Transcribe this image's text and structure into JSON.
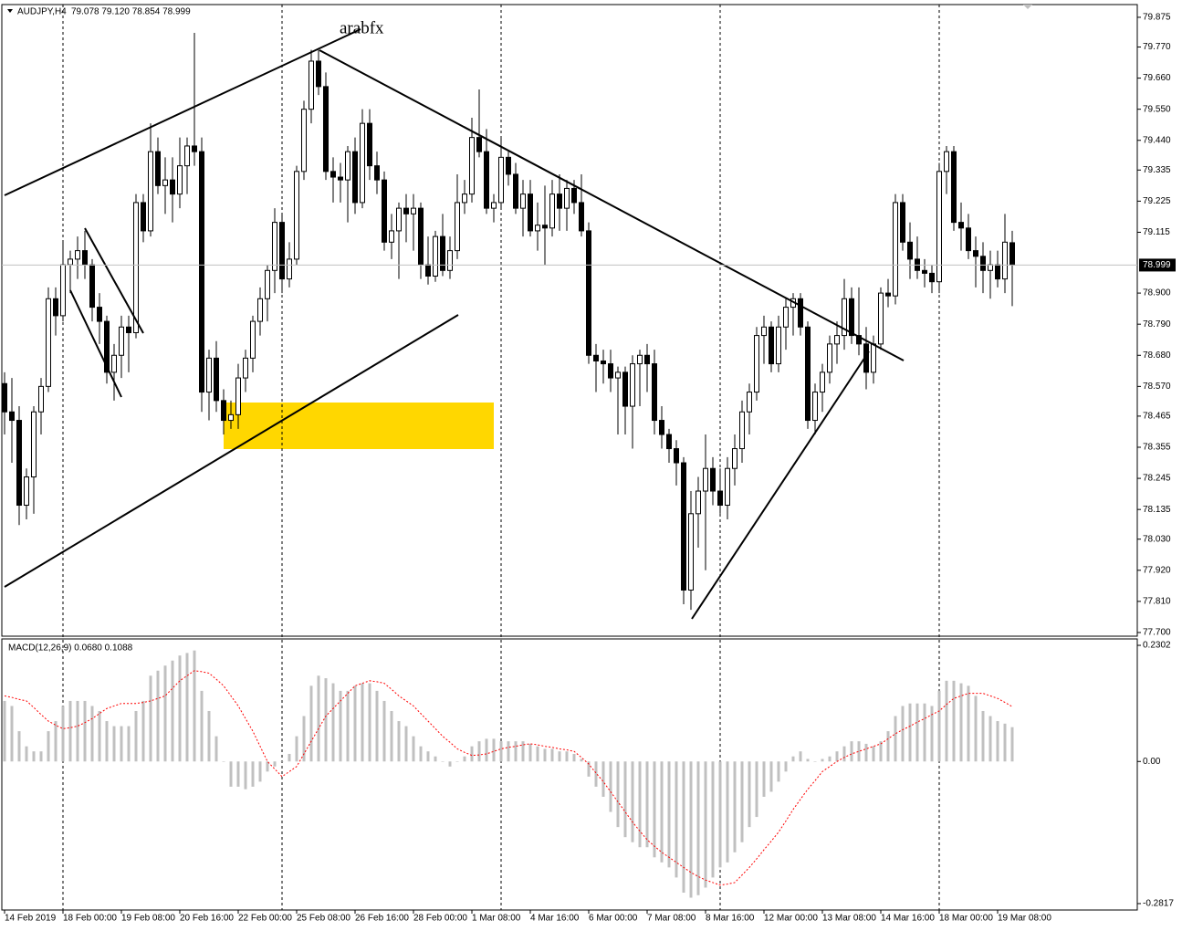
{
  "chart_data": [
    {
      "type": "candlestick",
      "title": "AUDJPY,H4",
      "ohlc_label": "79.078 79.120 78.854 78.999",
      "annotation": "arabfx",
      "categories": [
        "14 Feb 2019",
        null,
        null,
        null,
        null,
        null,
        null,
        null,
        "18 Feb 00:00",
        null,
        null,
        null,
        null,
        null,
        null,
        null,
        "19 Feb 08:00",
        null,
        null,
        null,
        null,
        null,
        null,
        null,
        "20 Feb 16:00",
        null,
        null,
        null,
        null,
        null,
        null,
        null,
        "22 Feb 00:00",
        null,
        null,
        null,
        null,
        null,
        null,
        null,
        "25 Feb 08:00",
        null,
        null,
        null,
        null,
        null,
        null,
        null,
        "26 Feb 16:00",
        null,
        null,
        null,
        null,
        null,
        null,
        null,
        "28 Feb 00:00",
        null,
        null,
        null,
        null,
        null,
        null,
        null,
        "1 Mar 08:00",
        null,
        null,
        null,
        null,
        null,
        null,
        null,
        "4 Mar 16:00",
        null,
        null,
        null,
        null,
        null,
        null,
        null,
        "6 Mar 00:00",
        null,
        null,
        null,
        null,
        null,
        null,
        null,
        "7 Mar 08:00",
        null,
        null,
        null,
        null,
        null,
        null,
        null,
        "8 Mar 16:00",
        null,
        null,
        null,
        null,
        null,
        null,
        null,
        "12 Mar 00:00",
        null,
        null,
        null,
        null,
        null,
        null,
        null,
        "13 Mar 08:00",
        null,
        null,
        null,
        null,
        null,
        null,
        null,
        "14 Mar 16:00",
        null,
        null,
        null,
        null,
        null,
        null,
        null,
        "18 Mar 00:00",
        null,
        null,
        null,
        null,
        null,
        null,
        null,
        "19 Mar 08:00",
        null,
        null
      ],
      "open": [
        78.58,
        78.48,
        78.45,
        78.15,
        78.25,
        78.48,
        78.57,
        78.88,
        78.82,
        79.0,
        79.02,
        79.05,
        79.0,
        78.85,
        78.8,
        78.62,
        78.68,
        78.78,
        78.76,
        79.22,
        79.12,
        79.4,
        79.28,
        79.3,
        79.25,
        79.35,
        79.42,
        79.4,
        78.55,
        78.67,
        78.52,
        78.45,
        78.47,
        78.6,
        78.67,
        78.8,
        78.88,
        78.98,
        79.15,
        78.95,
        79.02,
        79.33,
        79.55,
        79.72,
        79.63,
        79.33,
        79.31,
        79.3,
        79.4,
        79.22,
        79.5,
        79.35,
        79.3,
        79.08,
        79.12,
        79.2,
        79.18,
        79.2,
        79.0,
        78.96,
        79.1,
        78.98,
        79.05,
        79.22,
        79.25,
        79.45,
        79.4,
        79.2,
        79.22,
        79.38,
        79.32,
        79.2,
        79.25,
        79.12,
        79.14,
        79.13,
        79.25,
        79.2,
        79.27,
        79.22,
        79.12,
        78.68,
        78.66,
        78.65,
        78.6,
        78.62,
        78.5,
        78.65,
        78.68,
        78.65,
        78.45,
        78.4,
        78.35,
        78.3,
        77.85,
        78.12,
        78.2,
        78.28,
        78.2,
        78.15,
        78.28,
        78.35,
        78.48,
        78.55,
        78.75,
        78.78,
        78.65,
        78.78,
        78.85,
        78.88,
        78.78,
        78.45,
        78.55,
        78.62,
        78.72,
        78.75,
        78.88,
        78.75,
        78.72,
        78.62,
        78.72,
        78.9,
        78.89,
        79.22,
        79.08,
        79.02,
        78.98,
        78.97,
        78.94,
        79.33,
        79.4,
        79.15,
        79.13,
        79.05,
        79.03,
        78.98,
        79.0,
        78.95,
        79.078
      ],
      "high": [
        78.62,
        78.6,
        78.5,
        78.28,
        78.5,
        78.6,
        78.92,
        78.92,
        79.08,
        79.05,
        79.1,
        79.12,
        79.02,
        78.9,
        78.82,
        78.72,
        78.82,
        78.82,
        79.25,
        79.25,
        79.5,
        79.45,
        79.38,
        79.38,
        79.45,
        79.45,
        79.82,
        79.45,
        78.7,
        78.73,
        78.56,
        78.52,
        78.65,
        78.7,
        78.82,
        78.92,
        79.0,
        79.2,
        79.18,
        79.08,
        79.35,
        79.58,
        79.76,
        79.76,
        79.68,
        79.38,
        79.36,
        79.42,
        79.45,
        79.55,
        79.55,
        79.4,
        79.33,
        79.18,
        79.22,
        79.25,
        79.25,
        79.22,
        79.1,
        79.12,
        79.18,
        79.1,
        79.32,
        79.3,
        79.52,
        79.62,
        79.48,
        79.25,
        79.45,
        79.4,
        79.36,
        79.3,
        79.3,
        79.22,
        79.28,
        79.3,
        79.32,
        79.3,
        79.3,
        79.32,
        79.15,
        78.72,
        78.7,
        78.7,
        78.64,
        78.64,
        78.68,
        78.7,
        78.72,
        78.7,
        78.5,
        78.42,
        78.38,
        78.32,
        78.2,
        78.25,
        78.4,
        78.32,
        78.28,
        78.32,
        78.4,
        78.52,
        78.58,
        78.78,
        78.82,
        78.8,
        78.82,
        78.88,
        78.9,
        78.9,
        78.8,
        78.58,
        78.65,
        78.75,
        78.8,
        78.95,
        78.92,
        78.92,
        78.78,
        78.75,
        78.92,
        78.95,
        79.25,
        79.25,
        79.15,
        79.1,
        79.02,
        79.0,
        79.36,
        79.42,
        79.42,
        79.22,
        79.18,
        79.1,
        79.08,
        79.05,
        79.05,
        79.18,
        79.12
      ],
      "low": [
        78.4,
        78.3,
        78.08,
        78.1,
        78.12,
        78.4,
        78.55,
        78.75,
        78.8,
        78.9,
        78.95,
        78.95,
        78.8,
        78.72,
        78.58,
        78.52,
        78.6,
        78.62,
        78.74,
        79.08,
        79.1,
        79.25,
        79.18,
        79.15,
        79.2,
        79.25,
        79.35,
        78.48,
        78.45,
        78.48,
        78.4,
        78.42,
        78.42,
        78.55,
        78.62,
        78.75,
        78.8,
        78.9,
        78.9,
        78.92,
        79.0,
        79.3,
        79.5,
        79.6,
        79.3,
        79.22,
        79.22,
        79.15,
        79.18,
        79.2,
        79.3,
        79.25,
        79.05,
        79.02,
        78.95,
        79.08,
        79.05,
        78.95,
        78.93,
        78.94,
        78.96,
        78.95,
        79.02,
        79.18,
        79.22,
        79.38,
        79.18,
        79.15,
        79.2,
        79.28,
        79.18,
        79.1,
        79.1,
        79.05,
        79.0,
        79.1,
        79.12,
        79.12,
        79.18,
        79.1,
        78.65,
        78.55,
        78.58,
        78.55,
        78.4,
        78.4,
        78.35,
        78.5,
        78.55,
        78.4,
        78.35,
        78.3,
        78.22,
        77.8,
        77.78,
        78.0,
        77.92,
        78.15,
        78.12,
        78.1,
        78.22,
        78.3,
        78.4,
        78.52,
        78.65,
        78.62,
        78.62,
        78.7,
        78.75,
        78.75,
        78.42,
        78.4,
        78.48,
        78.58,
        78.65,
        78.7,
        78.72,
        78.68,
        78.56,
        78.58,
        78.7,
        78.85,
        78.86,
        79.05,
        78.95,
        78.95,
        78.92,
        78.9,
        78.9,
        79.25,
        79.12,
        79.05,
        79.02,
        78.92,
        78.9,
        78.88,
        78.92,
        78.9,
        78.854
      ],
      "close": [
        78.48,
        78.45,
        78.15,
        78.25,
        78.48,
        78.57,
        78.88,
        78.82,
        79.0,
        79.02,
        79.05,
        79.0,
        78.85,
        78.8,
        78.62,
        78.68,
        78.78,
        78.76,
        79.22,
        79.12,
        79.4,
        79.28,
        79.3,
        79.25,
        79.35,
        79.42,
        79.4,
        78.55,
        78.67,
        78.52,
        78.45,
        78.47,
        78.6,
        78.67,
        78.8,
        78.88,
        78.98,
        79.15,
        78.95,
        79.02,
        79.33,
        79.55,
        79.72,
        79.63,
        79.33,
        79.31,
        79.3,
        79.4,
        79.22,
        79.5,
        79.35,
        79.3,
        79.08,
        79.12,
        79.2,
        79.18,
        79.2,
        79.0,
        78.96,
        79.1,
        78.98,
        79.05,
        79.22,
        79.25,
        79.45,
        79.4,
        79.2,
        79.22,
        79.38,
        79.32,
        79.2,
        79.25,
        79.12,
        79.14,
        79.13,
        79.25,
        79.2,
        79.27,
        79.22,
        79.12,
        78.68,
        78.66,
        78.65,
        78.6,
        78.62,
        78.5,
        78.65,
        78.68,
        78.65,
        78.45,
        78.4,
        78.35,
        78.3,
        77.85,
        78.12,
        78.2,
        78.28,
        78.2,
        78.15,
        78.28,
        78.35,
        78.48,
        78.55,
        78.75,
        78.78,
        78.65,
        78.78,
        78.85,
        78.88,
        78.78,
        78.45,
        78.55,
        78.62,
        78.72,
        78.75,
        78.88,
        78.75,
        78.72,
        78.62,
        78.72,
        78.9,
        78.89,
        79.22,
        79.08,
        79.02,
        78.98,
        78.97,
        78.94,
        79.33,
        79.4,
        79.15,
        79.13,
        79.05,
        79.03,
        78.98,
        79.0,
        78.95,
        79.08,
        78.999
      ],
      "up_color": "#ffffff",
      "down_color": "#000000",
      "outline_color": "#000000",
      "ylim": [
        77.687,
        79.92
      ],
      "yticks": [
        79.875,
        {
          "value": 79.77,
          "label": "79.770"
        },
        {
          "value": 79.66,
          "label": "79.660"
        },
        {
          "value": 79.55,
          "label": "79.550"
        },
        {
          "value": 79.44,
          "label": "79.440"
        },
        79.335,
        79.225,
        79.115,
        {
          "value": 78.9,
          "label": "78.900"
        },
        {
          "value": 78.79,
          "label": "78.790"
        },
        {
          "value": 78.68,
          "label": "78.680"
        },
        {
          "value": 78.57,
          "label": "78.570"
        },
        78.465,
        78.355,
        78.245,
        78.135,
        {
          "value": 78.03,
          "label": "78.030"
        },
        {
          "value": 77.92,
          "label": "77.920"
        },
        {
          "value": 77.81,
          "label": "77.810"
        },
        {
          "value": 77.7,
          "label": "77.700"
        }
      ],
      "grid": false
    },
    {
      "type": "macd",
      "title": "MACD(12,26,9) 0.0680 0.1088",
      "series": [
        {
          "color": "#c0c0c0",
          "values": [
            0.12,
            0.11,
            0.06,
            0.03,
            0.02,
            0.02,
            0.06,
            0.08,
            0.11,
            0.12,
            0.12,
            0.12,
            0.11,
            0.1,
            0.08,
            0.07,
            0.07,
            0.07,
            0.1,
            0.12,
            0.17,
            0.18,
            0.19,
            0.2,
            0.21,
            0.215,
            0.22,
            0.14,
            0.1,
            0.05,
            0.0,
            -0.05,
            -0.05,
            -0.055,
            -0.05,
            -0.04,
            -0.02,
            -0.01,
            0.0,
            0.015,
            0.05,
            0.09,
            0.15,
            0.17,
            0.165,
            0.155,
            0.14,
            0.14,
            0.15,
            0.155,
            0.155,
            0.14,
            0.12,
            0.1,
            0.08,
            0.07,
            0.05,
            0.03,
            0.02,
            0.01,
            0.0,
            -0.01,
            0.0,
            0.01,
            0.03,
            0.04,
            0.045,
            0.045,
            0.04,
            0.04,
            0.04,
            0.04,
            0.035,
            0.03,
            0.025,
            0.025,
            0.02,
            0.02,
            0.015,
            0.005,
            -0.03,
            -0.05,
            -0.07,
            -0.1,
            -0.13,
            -0.15,
            -0.16,
            -0.17,
            -0.17,
            -0.19,
            -0.2,
            -0.21,
            -0.23,
            -0.26,
            -0.27,
            -0.265,
            -0.25,
            -0.23,
            -0.21,
            -0.2,
            -0.18,
            -0.16,
            -0.13,
            -0.11,
            -0.07,
            -0.06,
            -0.04,
            -0.02,
            0.01,
            0.02,
            0.005,
            0.0,
            0.005,
            0.01,
            0.02,
            0.03,
            0.04,
            0.04,
            0.035,
            0.03,
            0.04,
            0.06,
            0.09,
            0.11,
            0.115,
            0.115,
            0.115,
            0.11,
            0.14,
            0.16,
            0.16,
            0.155,
            0.15,
            0.13,
            0.1,
            0.09,
            0.08,
            0.075,
            0.068
          ]
        },
        {
          "color": "#ff0000",
          "style": "dotted",
          "values": [
            0.13,
            0.127,
            0.123,
            0.12,
            0.107,
            0.093,
            0.08,
            0.072,
            0.065,
            0.067,
            0.07,
            0.077,
            0.085,
            0.095,
            0.105,
            0.11,
            0.115,
            0.115,
            0.115,
            0.117,
            0.12,
            0.125,
            0.13,
            0.145,
            0.16,
            0.17,
            0.18,
            0.178,
            0.175,
            0.163,
            0.15,
            0.13,
            0.11,
            0.085,
            0.06,
            0.03,
            0,
            -0.015,
            -0.03,
            -0.02,
            -0.01,
            0.015,
            0.04,
            0.065,
            0.09,
            0.105,
            0.12,
            0.135,
            0.15,
            0.155,
            0.16,
            0.158,
            0.155,
            0.143,
            0.13,
            0.12,
            0.11,
            0.095,
            0.08,
            0.065,
            0.05,
            0.038,
            0.025,
            0.018,
            0.012,
            0.013,
            0.015,
            0.02,
            0.025,
            0.028,
            0.03,
            0.033,
            0.035,
            0.033,
            0.03,
            0.028,
            0.025,
            0.023,
            0.02,
            0.008,
            -0.005,
            -0.023,
            -0.04,
            -0.06,
            -0.08,
            -0.1,
            -0.12,
            -0.138,
            -0.155,
            -0.168,
            -0.18,
            -0.19,
            -0.2,
            -0.21,
            -0.22,
            -0.228,
            -0.235,
            -0.24,
            -0.245,
            -0.243,
            -0.24,
            -0.225,
            -0.21,
            -0.193,
            -0.175,
            -0.158,
            -0.14,
            -0.118,
            -0.095,
            -0.075,
            -0.055,
            -0.038,
            -0.02,
            -0.01,
            0,
            0.008,
            0.015,
            0.02,
            0.025,
            0.03,
            0.035,
            0.045,
            0.055,
            0.063,
            0.07,
            0.078,
            0.085,
            0.093,
            0.1,
            0.113,
            0.125,
            0.13,
            0.135,
            0.135,
            0.135,
            0.13,
            0.125,
            0.117,
            0.1088
          ]
        }
      ],
      "ylim": [
        -0.2944,
        0.2429
      ],
      "yticks": [
        0.2302,
        {
          "value": 0,
          "label": "0.00"
        },
        -0.2817
      ]
    }
  ]
}
